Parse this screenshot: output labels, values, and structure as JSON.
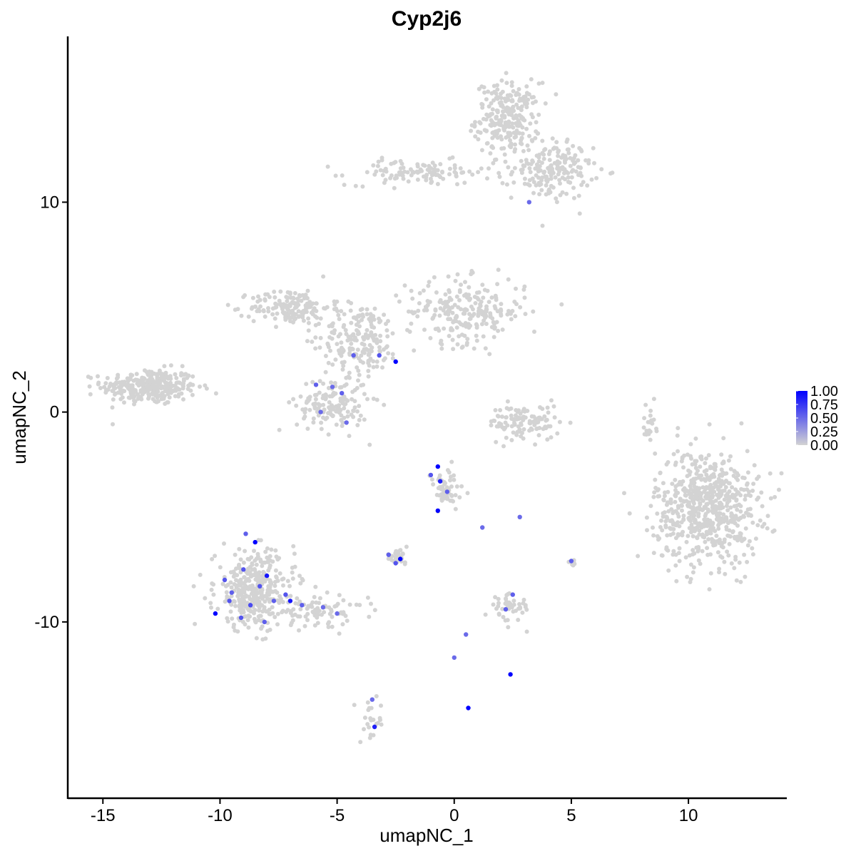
{
  "chart_data": {
    "type": "scatter",
    "title": "Cyp2j6",
    "xlabel": "umapNC_1",
    "ylabel": "umapNC_2",
    "xlim": [
      -16.5,
      14.2
    ],
    "ylim": [
      -18.4,
      17.9
    ],
    "x_ticks": [
      -15,
      -10,
      -5,
      0,
      5,
      10
    ],
    "x_tick_labels": [
      "-15",
      "-10",
      "-5",
      "0",
      "5",
      "10"
    ],
    "y_ticks": [
      10,
      0,
      -10
    ],
    "y_tick_labels": [
      "10",
      "0",
      "-10"
    ],
    "grid": false,
    "legend": {
      "placement": "right",
      "labels": [
        "1.00",
        "0.75",
        "0.50",
        "0.25",
        "0.00"
      ],
      "color_low": "#d3d3d3",
      "color_high": "#0000ff"
    },
    "clusters": [
      {
        "cx": -13.0,
        "cy": 1.2,
        "sx": 1.2,
        "sy": 0.5,
        "n": 300
      },
      {
        "cx": 2.3,
        "cy": 14.0,
        "sx": 0.8,
        "sy": 1.0,
        "n": 250
      },
      {
        "cx": 4.2,
        "cy": 11.5,
        "sx": 1.0,
        "sy": 0.8,
        "n": 180
      },
      {
        "cx": -1.5,
        "cy": 11.4,
        "sx": 1.8,
        "sy": 0.35,
        "n": 110
      },
      {
        "cx": -7.0,
        "cy": 5.0,
        "sx": 1.0,
        "sy": 0.5,
        "n": 160
      },
      {
        "cx": -4.0,
        "cy": 3.5,
        "sx": 1.0,
        "sy": 1.0,
        "n": 180
      },
      {
        "cx": 0.5,
        "cy": 4.8,
        "sx": 1.5,
        "sy": 0.9,
        "n": 230
      },
      {
        "cx": -5.2,
        "cy": 0.4,
        "sx": 0.9,
        "sy": 0.8,
        "n": 150
      },
      {
        "cx": 3.0,
        "cy": -0.5,
        "sx": 0.9,
        "sy": 0.5,
        "n": 110
      },
      {
        "cx": 10.8,
        "cy": -4.5,
        "sx": 1.3,
        "sy": 1.6,
        "n": 650
      },
      {
        "cx": 8.3,
        "cy": -0.5,
        "sx": 0.2,
        "sy": 0.6,
        "n": 20
      },
      {
        "cx": -0.4,
        "cy": -3.8,
        "sx": 0.5,
        "sy": 0.6,
        "n": 60
      },
      {
        "cx": -8.5,
        "cy": -8.5,
        "sx": 1.0,
        "sy": 1.1,
        "n": 360
      },
      {
        "cx": -5.8,
        "cy": -9.5,
        "sx": 1.2,
        "sy": 0.4,
        "n": 80
      },
      {
        "cx": -2.5,
        "cy": -6.9,
        "sx": 0.3,
        "sy": 0.2,
        "n": 25
      },
      {
        "cx": 2.4,
        "cy": -9.3,
        "sx": 0.5,
        "sy": 0.4,
        "n": 45
      },
      {
        "cx": -3.5,
        "cy": -14.8,
        "sx": 0.3,
        "sy": 0.6,
        "n": 25
      },
      {
        "cx": 5.0,
        "cy": -7.2,
        "sx": 0.1,
        "sy": 0.1,
        "n": 6
      }
    ],
    "expressing_cells": [
      {
        "x": -9.8,
        "y": -8.0,
        "value": 0.6
      },
      {
        "x": -9.5,
        "y": -8.6,
        "value": 0.55
      },
      {
        "x": -9.0,
        "y": -7.5,
        "value": 0.6
      },
      {
        "x": -8.7,
        "y": -9.2,
        "value": 0.65
      },
      {
        "x": -8.5,
        "y": -6.2,
        "value": 1.0
      },
      {
        "x": -8.3,
        "y": -8.3,
        "value": 0.6
      },
      {
        "x": -8.0,
        "y": -7.8,
        "value": 0.9
      },
      {
        "x": -7.7,
        "y": -9.0,
        "value": 0.55
      },
      {
        "x": -7.2,
        "y": -8.7,
        "value": 0.6
      },
      {
        "x": -7.0,
        "y": -9.0,
        "value": 0.9
      },
      {
        "x": -10.2,
        "y": -9.6,
        "value": 1.0
      },
      {
        "x": -9.1,
        "y": -9.8,
        "value": 0.6
      },
      {
        "x": -8.1,
        "y": -10.0,
        "value": 0.55
      },
      {
        "x": -6.5,
        "y": -9.2,
        "value": 0.55
      },
      {
        "x": -5.6,
        "y": -9.3,
        "value": 0.5
      },
      {
        "x": -5.0,
        "y": -9.6,
        "value": 0.5
      },
      {
        "x": -8.9,
        "y": -5.8,
        "value": 0.55
      },
      {
        "x": -9.6,
        "y": -9.0,
        "value": 0.6
      },
      {
        "x": -0.7,
        "y": -2.6,
        "value": 1.0
      },
      {
        "x": -0.6,
        "y": -3.3,
        "value": 0.85
      },
      {
        "x": -0.7,
        "y": -4.7,
        "value": 1.0
      },
      {
        "x": -1.0,
        "y": -3.0,
        "value": 0.6
      },
      {
        "x": -0.3,
        "y": -3.8,
        "value": 0.55
      },
      {
        "x": 1.2,
        "y": -5.5,
        "value": 0.5
      },
      {
        "x": -2.5,
        "y": -7.2,
        "value": 0.6
      },
      {
        "x": -2.3,
        "y": -7.0,
        "value": 1.0
      },
      {
        "x": -2.8,
        "y": -6.8,
        "value": 0.55
      },
      {
        "x": 2.4,
        "y": -12.5,
        "value": 1.0
      },
      {
        "x": 2.5,
        "y": -8.7,
        "value": 0.55
      },
      {
        "x": 2.2,
        "y": -9.4,
        "value": 0.55
      },
      {
        "x": 0.6,
        "y": -14.1,
        "value": 1.0
      },
      {
        "x": -3.4,
        "y": -15.0,
        "value": 0.85
      },
      {
        "x": -3.5,
        "y": -13.7,
        "value": 0.5
      },
      {
        "x": 0.5,
        "y": -10.6,
        "value": 0.5
      },
      {
        "x": 0.0,
        "y": -11.7,
        "value": 0.5
      },
      {
        "x": 2.8,
        "y": -5.0,
        "value": 0.5
      },
      {
        "x": 5.0,
        "y": -7.1,
        "value": 0.55
      },
      {
        "x": -2.5,
        "y": 2.4,
        "value": 1.0
      },
      {
        "x": -3.2,
        "y": 2.7,
        "value": 0.6
      },
      {
        "x": -4.3,
        "y": 2.7,
        "value": 0.55
      },
      {
        "x": -5.9,
        "y": 1.3,
        "value": 0.55
      },
      {
        "x": -5.2,
        "y": 1.2,
        "value": 0.5
      },
      {
        "x": -4.8,
        "y": 0.9,
        "value": 0.55
      },
      {
        "x": -5.7,
        "y": 0.0,
        "value": 0.5
      },
      {
        "x": -4.6,
        "y": -0.5,
        "value": 0.5
      },
      {
        "x": 3.2,
        "y": 10.0,
        "value": 0.5
      }
    ]
  }
}
